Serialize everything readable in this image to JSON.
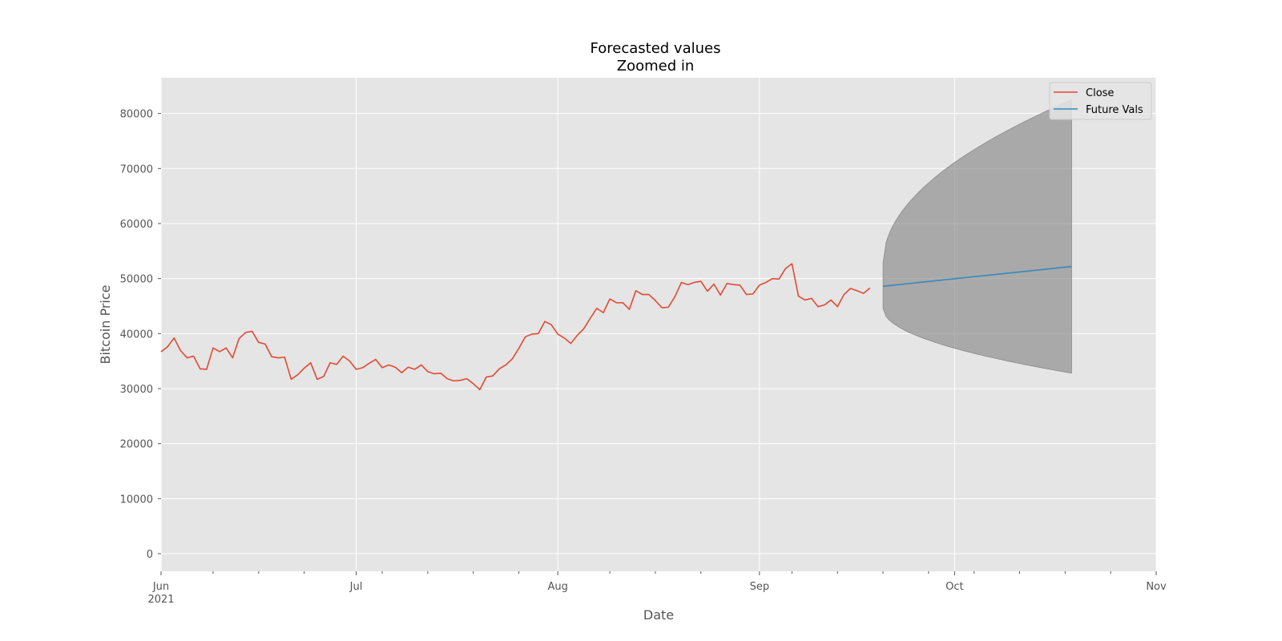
{
  "chart_data": {
    "type": "line",
    "title": "Forecasted values\nZoomed in",
    "title_lines": [
      "Forecasted values",
      "Zoomed in"
    ],
    "xlabel": "Date",
    "ylabel": "Bitcoin Price",
    "xlim": [
      "2021-06-01",
      "2021-11-01"
    ],
    "ylim": [
      -3200,
      86500
    ],
    "grid": true,
    "legend_position": "upper-right",
    "y_ticks": [
      0,
      10000,
      20000,
      30000,
      40000,
      50000,
      60000,
      70000,
      80000
    ],
    "x_major_ticks": [
      {
        "date": "2021-06-01",
        "label": "Jun",
        "sublabel": "2021"
      },
      {
        "date": "2021-07-01",
        "label": "Jul"
      },
      {
        "date": "2021-08-01",
        "label": "Aug"
      },
      {
        "date": "2021-09-01",
        "label": "Sep"
      },
      {
        "date": "2021-10-01",
        "label": "Oct"
      },
      {
        "date": "2021-11-01",
        "label": "Nov"
      }
    ],
    "x_minor_ticks": [
      "2021-06-09",
      "2021-06-16",
      "2021-06-23",
      "2021-07-05",
      "2021-07-12",
      "2021-07-19",
      "2021-07-26",
      "2021-08-09",
      "2021-08-16",
      "2021-08-23",
      "2021-09-06",
      "2021-09-13",
      "2021-09-20",
      "2021-09-27",
      "2021-10-04",
      "2021-10-11",
      "2021-10-18",
      "2021-10-25"
    ],
    "series": [
      {
        "name": "Close",
        "color": "#E24A33",
        "x_start": "2021-06-01",
        "step_days": 1,
        "values": [
          36700,
          37600,
          39200,
          36900,
          35600,
          35900,
          33600,
          33500,
          37400,
          36700,
          37400,
          35600,
          39100,
          40200,
          40400,
          38400,
          38100,
          35800,
          35600,
          35700,
          31700,
          32500,
          33700,
          34700,
          31700,
          32200,
          34700,
          34400,
          35900,
          35000,
          33500,
          33800,
          34600,
          35300,
          33800,
          34300,
          33900,
          32900,
          33900,
          33500,
          34300,
          33100,
          32700,
          32800,
          31800,
          31400,
          31500,
          31800,
          30900,
          29800,
          32100,
          32300,
          33600,
          34300,
          35400,
          37300,
          39400,
          39900,
          40000,
          42200,
          41600,
          39900,
          39200,
          38200,
          39700,
          40900,
          42800,
          44600,
          43800,
          46300,
          45600,
          45600,
          44400,
          47800,
          47100,
          47100,
          46000,
          44700,
          44800,
          46700,
          49300,
          48900,
          49300,
          49500,
          47700,
          49000,
          47000,
          49100,
          48900,
          48800,
          47100,
          47200,
          48800,
          49300,
          50000,
          49900,
          51800,
          52700,
          46800,
          46100,
          46400,
          44900,
          45200,
          46100,
          44900,
          47100,
          48200,
          47800,
          47300,
          48300
        ]
      },
      {
        "name": "Future Vals",
        "color": "#348ABD",
        "x_start": "2021-09-20",
        "step_days": 1,
        "values": [
          48600,
          52200
        ],
        "x_end": "2021-10-19"
      }
    ],
    "confidence_band": {
      "color": "#808080",
      "x_start": "2021-09-20",
      "step_days": 1,
      "upper": [
        52800,
        82500
      ],
      "lower": [
        44600,
        32800
      ],
      "x_end": "2021-10-19"
    },
    "legend": [
      {
        "label": "Close",
        "color": "#E24A33"
      },
      {
        "label": "Future Vals",
        "color": "#348ABD"
      }
    ]
  }
}
